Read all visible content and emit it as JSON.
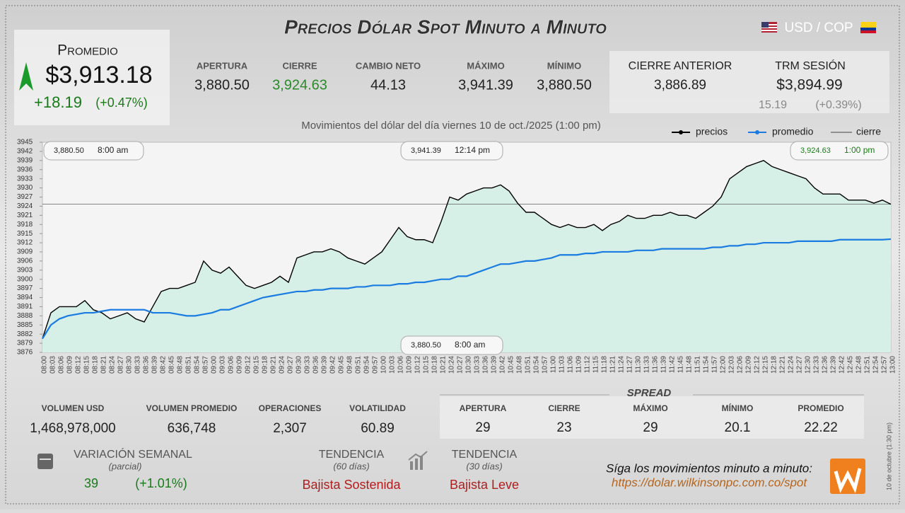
{
  "header": {
    "title": "Precios Dólar Spot Minuto a Minuto",
    "pair": "USD / COP"
  },
  "promedio": {
    "label": "Promedio",
    "value": "$3,913.18",
    "change": "+18.19",
    "percent": "(+0.47%)"
  },
  "stats": [
    {
      "label": "APERTURA",
      "value": "3,880.50"
    },
    {
      "label": "CIERRE",
      "value": "3,924.63"
    },
    {
      "label": "CAMBIO NETO",
      "value": "44.13"
    },
    {
      "label": "MÁXIMO",
      "value": "3,941.39"
    },
    {
      "label": "MÍNIMO",
      "value": "3,880.50"
    }
  ],
  "previous": {
    "label": "CIERRE ANTERIOR",
    "value": "3,886.89"
  },
  "trm": {
    "label": "TRM SESIÓN",
    "value": "$3,894.99",
    "change": "15.19",
    "percent": "(+0.39%)"
  },
  "chart_data": {
    "type": "line",
    "title": "Movimientos del dólar del día viernes 10 de oct./2025 (1:00 pm)",
    "categories": [
      "08:00",
      "08:03",
      "08:06",
      "08:09",
      "08:12",
      "08:15",
      "08:18",
      "08:21",
      "08:24",
      "08:27",
      "08:30",
      "08:33",
      "08:36",
      "08:39",
      "08:42",
      "08:45",
      "08:48",
      "08:51",
      "08:54",
      "08:57",
      "09:00",
      "09:03",
      "09:06",
      "09:09",
      "09:12",
      "09:15",
      "09:18",
      "09:21",
      "09:24",
      "09:27",
      "09:30",
      "09:33",
      "09:36",
      "09:39",
      "09:42",
      "09:45",
      "09:48",
      "09:51",
      "09:54",
      "09:57",
      "10:00",
      "10:03",
      "10:06",
      "10:09",
      "10:12",
      "10:15",
      "10:18",
      "10:21",
      "10:24",
      "10:27",
      "10:30",
      "10:33",
      "10:36",
      "10:39",
      "10:42",
      "10:45",
      "10:48",
      "10:51",
      "10:54",
      "10:57",
      "11:00",
      "11:03",
      "11:06",
      "11:09",
      "11:12",
      "11:15",
      "11:18",
      "11:21",
      "11:24",
      "11:27",
      "11:30",
      "11:33",
      "11:36",
      "11:39",
      "11:42",
      "11:45",
      "11:48",
      "11:51",
      "11:54",
      "11:57",
      "12:00",
      "12:03",
      "12:06",
      "12:09",
      "12:12",
      "12:15",
      "12:18",
      "12:21",
      "12:24",
      "12:27",
      "12:30",
      "12:33",
      "12:36",
      "12:39",
      "12:42",
      "12:45",
      "12:48",
      "12:51",
      "12:54",
      "12:57",
      "13:00"
    ],
    "series": [
      {
        "name": "precios",
        "color": "#000000",
        "values": [
          3880.5,
          3889,
          3891,
          3891,
          3891,
          3893,
          3890,
          3889,
          3887,
          3888,
          3889,
          3887,
          3886,
          3891,
          3896,
          3897,
          3897,
          3898,
          3899,
          3906,
          3903,
          3902,
          3904,
          3901,
          3898,
          3897,
          3898,
          3899,
          3901,
          3899,
          3907,
          3908,
          3909,
          3909,
          3910,
          3909,
          3907,
          3906,
          3905,
          3907,
          3909,
          3913,
          3917,
          3914,
          3913,
          3913,
          3912,
          3919,
          3927,
          3926,
          3928,
          3929,
          3930,
          3930,
          3931,
          3929,
          3925,
          3922,
          3922,
          3920,
          3918,
          3917,
          3918,
          3917,
          3917,
          3918,
          3916,
          3918,
          3919,
          3921,
          3920,
          3920,
          3921,
          3921,
          3922,
          3921,
          3921,
          3920,
          3922,
          3924,
          3927,
          3933,
          3935,
          3937,
          3938,
          3939,
          3937,
          3936,
          3935,
          3934,
          3933,
          3930,
          3928,
          3928,
          3928,
          3926,
          3926,
          3926,
          3925,
          3926,
          3924.63
        ]
      },
      {
        "name": "promedio",
        "color": "#1a7be0",
        "values": [
          3880.5,
          3885,
          3887,
          3888,
          3888.5,
          3889,
          3889,
          3889.5,
          3890,
          3890,
          3890,
          3890,
          3890,
          3889,
          3889,
          3889,
          3888.5,
          3888,
          3888,
          3888.5,
          3889,
          3890,
          3890,
          3891,
          3892,
          3893,
          3894,
          3894.5,
          3895,
          3895.5,
          3896,
          3896,
          3896.5,
          3896.5,
          3897,
          3897,
          3897,
          3897.5,
          3897.5,
          3898,
          3898,
          3898,
          3898.5,
          3898.5,
          3899,
          3899,
          3899.5,
          3900,
          3900,
          3901,
          3901,
          3902,
          3903,
          3904,
          3905,
          3905,
          3905.5,
          3906,
          3906,
          3906.5,
          3907,
          3908,
          3908,
          3908,
          3908.5,
          3908.5,
          3909,
          3909,
          3909,
          3909,
          3909.5,
          3909.5,
          3909.5,
          3910,
          3910,
          3910,
          3910,
          3910,
          3910,
          3910.5,
          3910.5,
          3911,
          3911,
          3911.5,
          3911.5,
          3912,
          3912,
          3912,
          3912,
          3912.5,
          3912.5,
          3912.5,
          3912.5,
          3912.5,
          3913,
          3913,
          3913,
          3913,
          3913,
          3913,
          3913.18
        ]
      }
    ],
    "reference_lines": [
      {
        "name": "cierre",
        "color": "#444444",
        "value": 3924.63
      }
    ],
    "ylim": [
      3876,
      3945
    ],
    "yticks": [
      3876,
      3879,
      3882,
      3885,
      3888,
      3891,
      3894,
      3897,
      3900,
      3903,
      3906,
      3909,
      3912,
      3915,
      3918,
      3921,
      3924,
      3927,
      3930,
      3933,
      3936,
      3939,
      3942,
      3945
    ],
    "area_color": "#d6efe7",
    "annotations": [
      {
        "value": "3,880.50",
        "time": "8:00 am"
      },
      {
        "value": "3,941.39",
        "time": "12:14 pm"
      },
      {
        "value": "3,924.63",
        "time": "1:00 pm"
      },
      {
        "value": "3,880.50",
        "time": "8:00 am"
      }
    ]
  },
  "volume": [
    {
      "label": "VOLUMEN USD",
      "value": "1,468,978,000"
    },
    {
      "label": "VOLUMEN PROMEDIO",
      "value": "636,748"
    },
    {
      "label": "OPERACIONES",
      "value": "2,307"
    },
    {
      "label": "VOLATILIDAD",
      "value": "60.89"
    }
  ],
  "spread": {
    "title": "SPREAD",
    "items": [
      {
        "label": "APERTURA",
        "value": "29"
      },
      {
        "label": "CIERRE",
        "value": "23"
      },
      {
        "label": "MÁXIMO",
        "value": "29"
      },
      {
        "label": "MÍNIMO",
        "value": "20.1"
      },
      {
        "label": "PROMEDIO",
        "value": "22.22"
      }
    ]
  },
  "weekly": {
    "label": "VARIACIÓN SEMANAL",
    "note": "(parcial)",
    "value": "39",
    "percent": "(+1.01%)"
  },
  "trends": [
    {
      "label": "TENDENCIA",
      "note": "(60 días)",
      "value": "Bajista Sostenida"
    },
    {
      "label": "TENDENCIA",
      "note": "(30 días)",
      "value": "Bajista Leve"
    }
  ],
  "footer": {
    "text": "Síga los movimientos minuto a minuto:",
    "url": "https://dolar.wilkinsonpc.com.co/spot",
    "stamp": "10 de octubre (1:30 pm)"
  }
}
